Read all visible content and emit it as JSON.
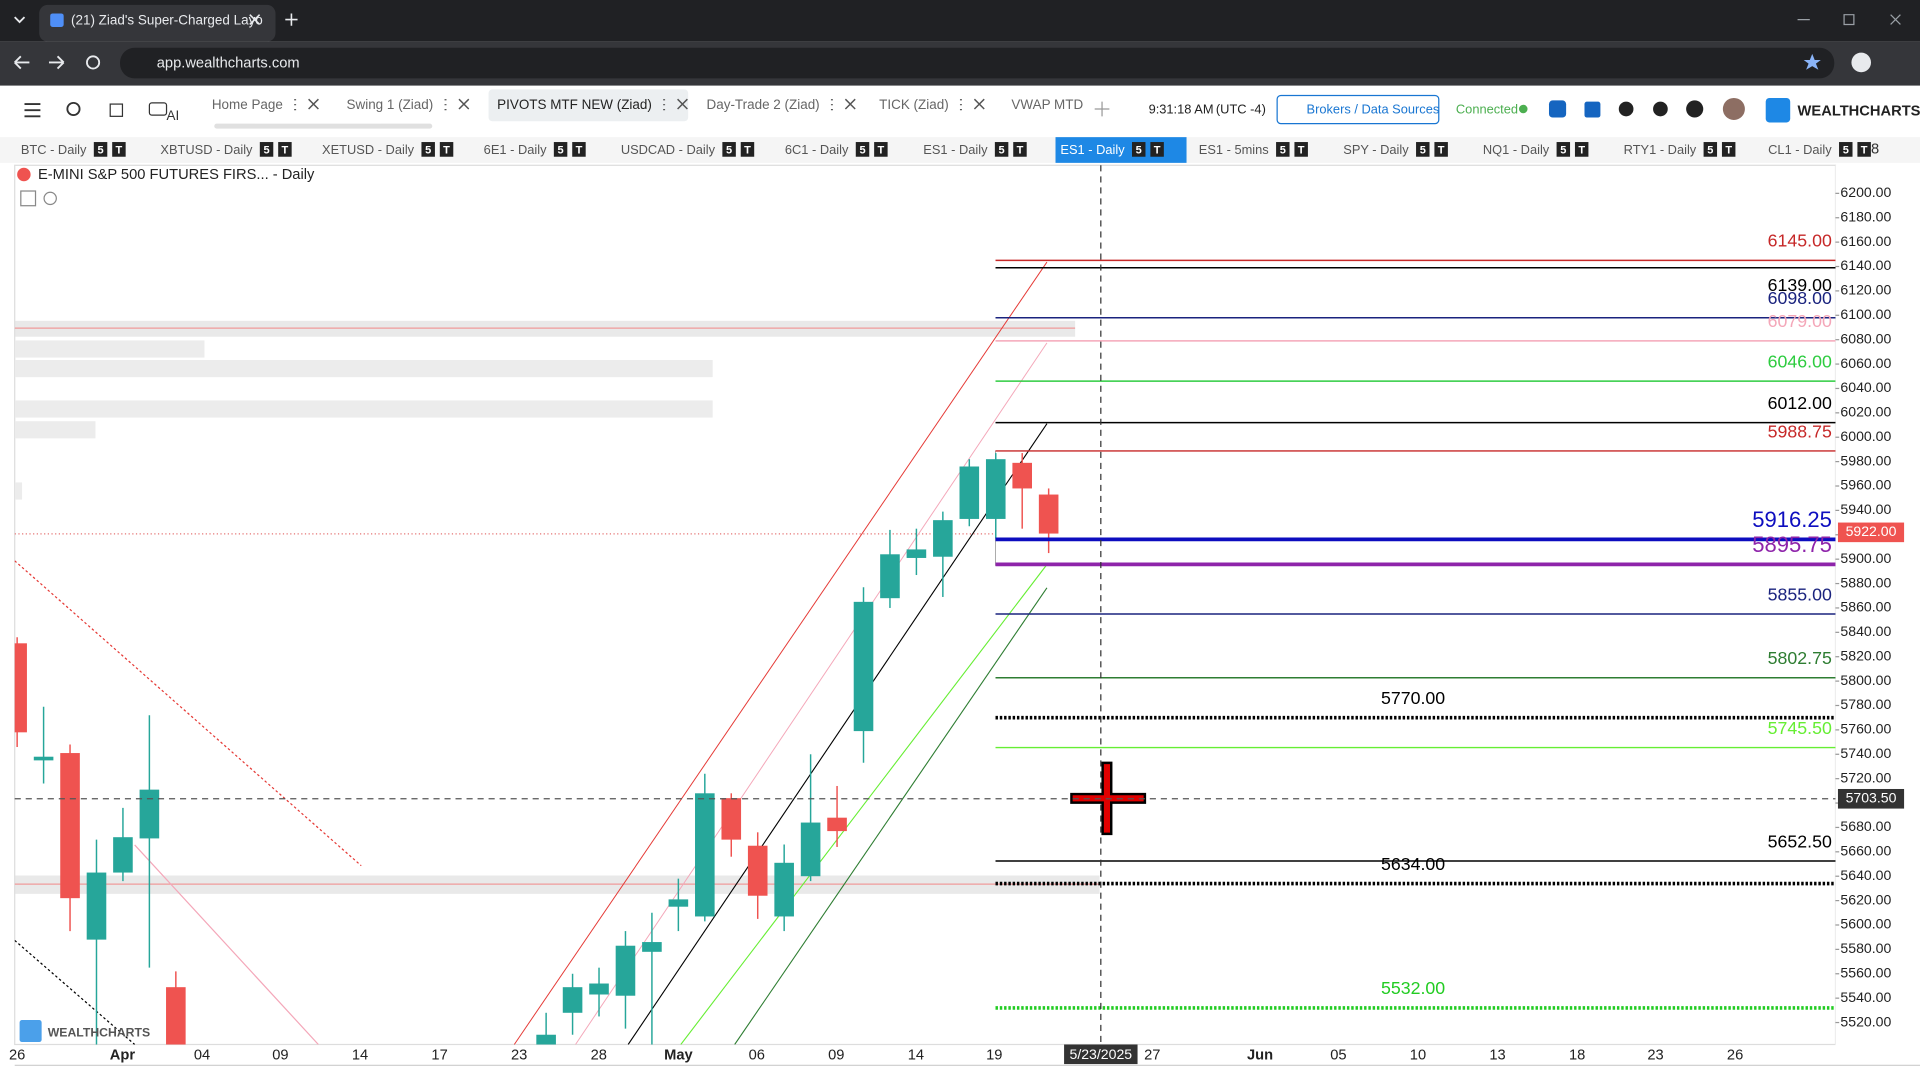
{
  "browser": {
    "tab_title": "(21) Ziad's Super-Charged Layo",
    "url": "app.wealthcharts.com"
  },
  "toolbar": {
    "tabs": [
      "Home Page",
      "Swing 1 (Ziad)",
      "PIVOTS MTF NEW (Ziad)",
      "Day-Trade 2 (Ziad)",
      "TICK (Ziad)",
      "VWAP MTD"
    ],
    "ai": "AI",
    "time": "9:31:18 AM",
    "timezone": "(UTC -4)",
    "brokers": "Brokers / Data Sources",
    "status": "Connected",
    "brand": "WEALTHCHARTS"
  },
  "symbol_tabs": {
    "tabs": [
      "BTC - Daily",
      "XBTUSD - Daily",
      "XETUSD - Daily",
      "6E1 - Daily",
      "USDCAD - Daily",
      "6C1 - Daily",
      "ES1 - Daily",
      "ES1 - Daily",
      "ES1 - 5mins",
      "SPY - Daily",
      "NQ1 - Daily",
      "RTY1 - Daily",
      "CL1 - Daily"
    ],
    "badges": [
      "5",
      "T"
    ],
    "count": "8"
  },
  "chart": {
    "title": "E-MINI S&P 500 FUTURES FIRS... - Daily",
    "date": "5/23/2025",
    "ylim": [
      5502,
      6223
    ],
    "yticks": [
      {
        "value": 5520,
        "label": "5520.00"
      },
      {
        "value": 5540,
        "label": "5540.00"
      },
      {
        "value": 5560,
        "label": "5560.00"
      },
      {
        "value": 5580,
        "label": "5580.00"
      },
      {
        "value": 5600,
        "label": "5600.00"
      },
      {
        "value": 5620,
        "label": "5620.00"
      },
      {
        "value": 5640,
        "label": "5640.00"
      },
      {
        "value": 5660,
        "label": "5660.00"
      },
      {
        "value": 5680,
        "label": "5680.00"
      },
      {
        "value": 5700,
        "label": "5700.00"
      },
      {
        "value": 5720,
        "label": "5720.00"
      },
      {
        "value": 5740,
        "label": "5740.00"
      },
      {
        "value": 5760,
        "label": "5760.00"
      },
      {
        "value": 5780,
        "label": "5780.00"
      },
      {
        "value": 5800,
        "label": "5800.00"
      },
      {
        "value": 5820,
        "label": "5820.00"
      },
      {
        "value": 5840,
        "label": "5840.00"
      },
      {
        "value": 5860,
        "label": "5860.00"
      },
      {
        "value": 5880,
        "label": "5880.00"
      },
      {
        "value": 5900,
        "label": "5900.00"
      },
      {
        "value": 5920,
        "label": "5920.00"
      },
      {
        "value": 5940,
        "label": "5940.00"
      },
      {
        "value": 5960,
        "label": "5960.00"
      },
      {
        "value": 5980,
        "label": "5980.00"
      },
      {
        "value": 6000,
        "label": "6000.00"
      },
      {
        "value": 6020,
        "label": "6020.00"
      },
      {
        "value": 6040,
        "label": "6040.00"
      },
      {
        "value": 6060,
        "label": "6060.00"
      },
      {
        "value": 6080,
        "label": "6080.00"
      },
      {
        "value": 6100,
        "label": "6100.00"
      },
      {
        "value": 6120,
        "label": "6120.00"
      },
      {
        "value": 6140,
        "label": "6140.00"
      },
      {
        "value": 6160,
        "label": "6160.00"
      },
      {
        "value": 6180,
        "label": "6180.00"
      },
      {
        "value": 6200,
        "label": "6200.00"
      }
    ],
    "x_labels": [
      "26",
      "Apr",
      "04",
      "09",
      "14",
      "17",
      "23",
      "28",
      "May",
      "06",
      "09",
      "14",
      "19",
      "27",
      "Jun",
      "05",
      "10",
      "13",
      "18",
      "23",
      "26"
    ],
    "up_color": "#26a69a",
    "down_color": "#ef5350",
    "candles": {
      "open": [
        5831,
        5735,
        5741,
        5588,
        5643,
        5671,
        5549,
        null,
        null,
        null,
        null,
        null,
        null,
        null,
        null,
        null,
        null,
        null,
        null,
        null,
        5480,
        5528,
        5543,
        5542,
        5578,
        5615,
        5607,
        5704,
        5665,
        5607,
        5640,
        5688,
        5759,
        5868,
        5901,
        5902,
        5933,
        5933,
        5979,
        5953
      ],
      "high": [
        5836,
        5779,
        5748,
        5670,
        5696,
        5772,
        5562,
        null,
        null,
        null,
        null,
        null,
        null,
        null,
        null,
        null,
        null,
        null,
        null,
        null,
        5528,
        5560,
        5565,
        5595,
        5610,
        5638,
        5724,
        5708,
        5676,
        5666,
        5740,
        5714,
        5877,
        5924,
        5925,
        5939,
        5982,
        5987,
        5987,
        5958
      ],
      "low": [
        5746,
        5716,
        5595,
        5490,
        5636,
        5565,
        5450,
        null,
        null,
        null,
        null,
        null,
        null,
        null,
        null,
        null,
        null,
        null,
        null,
        null,
        5470,
        5510,
        5525,
        5515,
        5500,
        5595,
        5603,
        5656,
        5605,
        5595,
        5636,
        5664,
        5733,
        5860,
        5887,
        5869,
        5927,
        5917,
        5925,
        5905
      ],
      "close": [
        5758,
        5738,
        5622,
        5643,
        5672,
        5711,
        5470,
        null,
        null,
        null,
        null,
        null,
        null,
        null,
        null,
        null,
        null,
        null,
        null,
        null,
        5510,
        5549,
        5552,
        5583,
        5586,
        5621,
        5708,
        5670,
        5624,
        5651,
        5684,
        5677,
        5865,
        5904,
        5908,
        5932,
        5976,
        5982,
        5958,
        5921
      ]
    },
    "levels": [
      {
        "value": 6145,
        "label": "6145.00",
        "color": "#c62828",
        "style": "solid"
      },
      {
        "value": 6139,
        "label": "6139.00",
        "color": "#000000",
        "style": "solid"
      },
      {
        "value": 6098,
        "label": "6098.00",
        "color": "#1a237e",
        "style": "solid"
      },
      {
        "value": 6079,
        "label": "6079.00",
        "color": "#f4a7b9",
        "style": "solid"
      },
      {
        "value": 6046,
        "label": "6046.00",
        "color": "#2ecc40",
        "style": "solid"
      },
      {
        "value": 6012,
        "label": "6012.00",
        "color": "#000000",
        "style": "solid"
      },
      {
        "value": 5988.75,
        "label": "5988.75",
        "color": "#c62828",
        "style": "solid"
      },
      {
        "value": 5916.25,
        "label": "5916.25",
        "color": "#0d0dbf",
        "style": "thick"
      },
      {
        "value": 5895.75,
        "label": "5895.75",
        "color": "#8e24aa",
        "style": "thick"
      },
      {
        "value": 5855,
        "label": "5855.00",
        "color": "#1a237e",
        "style": "solid"
      },
      {
        "value": 5802.75,
        "label": "5802.75",
        "color": "#2e7d32",
        "style": "solid"
      },
      {
        "value": 5770,
        "label": "5770.00",
        "color": "#000000",
        "style": "dotted"
      },
      {
        "value": 5745.5,
        "label": "5745.50",
        "color": "#66ee33",
        "style": "solid"
      },
      {
        "value": 5652.5,
        "label": "5652.50",
        "color": "#000000",
        "style": "solid"
      },
      {
        "value": 5634,
        "label": "5634.00",
        "color": "#000000",
        "style": "dotted"
      },
      {
        "value": 5532,
        "label": "5532.00",
        "color": "#22cc22",
        "style": "dotted"
      }
    ],
    "last_price": {
      "value": 5922,
      "label": "5922.00"
    },
    "crosshair": {
      "value": 5703.5,
      "label": "5703.50",
      "date": "5/23/2025"
    },
    "watermark": "WEALTHCHARTS"
  }
}
